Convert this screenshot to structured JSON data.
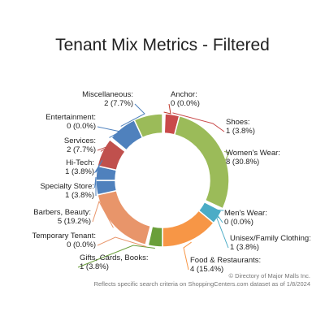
{
  "chart_data": {
    "type": "pie",
    "variant": "donut",
    "title": "Tenant Mix Metrics - Filtered",
    "slices": [
      {
        "name": "Anchor",
        "count": 0,
        "percent": "0.0%",
        "color": "#c0392b"
      },
      {
        "name": "Shoes",
        "count": 1,
        "percent": "3.8%",
        "color": "#c94a4a"
      },
      {
        "name": "Women's Wear",
        "count": 8,
        "percent": "30.8%",
        "color": "#9bbb59"
      },
      {
        "name": "Men's Wear",
        "count": 0,
        "percent": "0.0%",
        "color": "#4bacc6"
      },
      {
        "name": "Unisex/Family Clothing",
        "count": 1,
        "percent": "3.8%",
        "color": "#4bacc6"
      },
      {
        "name": "Food & Restaurants",
        "count": 4,
        "percent": "15.4%",
        "color": "#f79646"
      },
      {
        "name": "Gifts, Cards, Books",
        "count": 1,
        "percent": "3.8%",
        "color": "#6a9f3a"
      },
      {
        "name": "Temporary Tenant",
        "count": 0,
        "percent": "0.0%",
        "color": "#e8956a"
      },
      {
        "name": "Barbers, Beauty",
        "count": 5,
        "percent": "19.2%",
        "color": "#e8956a"
      },
      {
        "name": "Specialty Store",
        "count": 1,
        "percent": "3.8%",
        "color": "#4f81bd"
      },
      {
        "name": "Hi-Tech",
        "count": 1,
        "percent": "3.8%",
        "color": "#4f81bd"
      },
      {
        "name": "Services",
        "count": 2,
        "percent": "7.7%",
        "color": "#c0504d"
      },
      {
        "name": "Entertainment",
        "count": 0,
        "percent": "0.0%",
        "color": "#4f81bd"
      },
      {
        "name": "Miscellaneous",
        "count": 2,
        "percent": "7.7%",
        "color": "#4f81bd"
      },
      {
        "name": "",
        "count": 2,
        "percent": "",
        "color": "#9bbb59"
      }
    ],
    "legend": "none"
  },
  "footer": {
    "copyright": "© Directory of Major Malls Inc.",
    "note": "Reflects specific search criteria on ShoppingCenters.com dataset as of 1/8/2024"
  }
}
